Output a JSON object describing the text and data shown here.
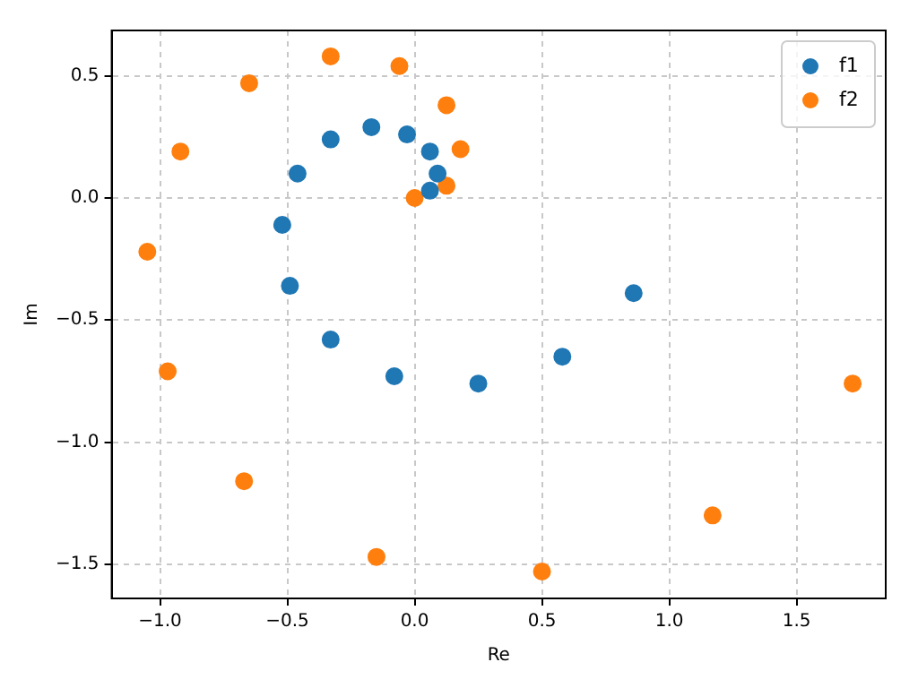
{
  "chart_data": {
    "type": "scatter",
    "xlabel": "Re",
    "ylabel": "Im",
    "xlim": [
      -1.19,
      1.85
    ],
    "ylim": [
      -1.64,
      0.686
    ],
    "xticks": [
      {
        "value": -1.0,
        "label": "−1.0"
      },
      {
        "value": -0.5,
        "label": "−0.5"
      },
      {
        "value": 0,
        "label": "0.0"
      },
      {
        "value": 0.5,
        "label": "0.5"
      },
      {
        "value": 1.0,
        "label": "1.0"
      },
      {
        "value": 1.5,
        "label": "1.5"
      }
    ],
    "yticks": [
      {
        "value": -1.5,
        "label": "−1.5"
      },
      {
        "value": -1.0,
        "label": "−1.0"
      },
      {
        "value": -0.5,
        "label": "−0.5"
      },
      {
        "value": 0,
        "label": "0.0"
      },
      {
        "value": 0.5,
        "label": "0.5"
      }
    ],
    "grid": true,
    "legend": "top right",
    "marker": "circle",
    "series": [
      {
        "name": "f1",
        "color": "#1f77b4",
        "x": [
          -0.33,
          -0.17,
          -0.03,
          0.06,
          0.09,
          0.06,
          -0.46,
          -0.52,
          -0.49,
          -0.33,
          -0.08,
          0.25,
          0.58,
          0.86
        ],
        "values": [
          0.24,
          0.29,
          0.26,
          0.19,
          0.1,
          0.03,
          0.1,
          -0.11,
          -0.36,
          -0.58,
          -0.73,
          -0.76,
          -0.65,
          -0.39
        ]
      },
      {
        "name": "f2",
        "color": "#ff7f0e",
        "x": [
          -0.33,
          -0.06,
          -0.65,
          0.125,
          0.18,
          0.125,
          0,
          -0.92,
          -1.05,
          -0.97,
          -0.67,
          -0.15,
          0.5,
          1.17,
          1.72
        ],
        "values": [
          0.58,
          0.54,
          0.47,
          0.38,
          0.2,
          0.05,
          0,
          0.19,
          -0.22,
          -0.71,
          -1.16,
          -1.47,
          -1.53,
          -1.3,
          -0.76
        ]
      }
    ]
  }
}
